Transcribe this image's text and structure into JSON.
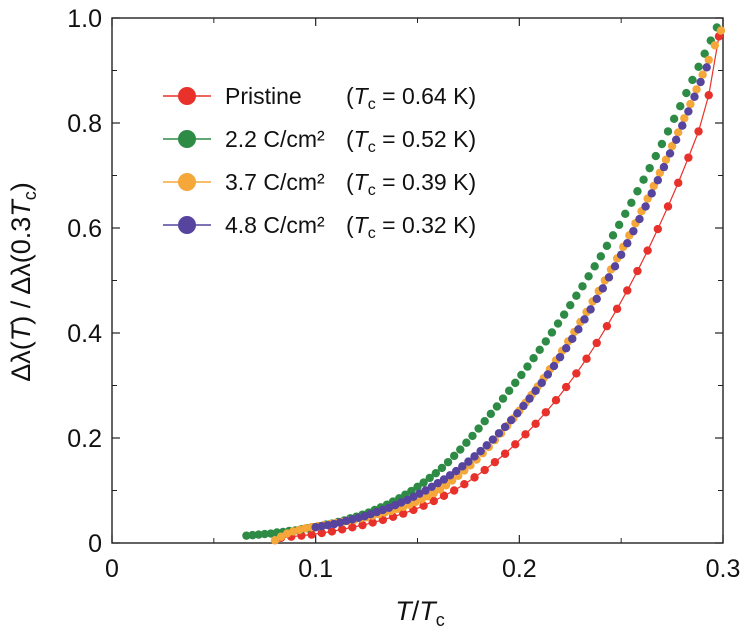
{
  "chart_data": {
    "type": "scatter",
    "title": "",
    "xlabel": {
      "main": "T",
      "slash": "/",
      "sym": "T",
      "sub": "c"
    },
    "ylabel": {
      "p1": "Δλ(",
      "T": "T",
      "p2": ") / Δλ(0.3",
      "T2": "T",
      "sub": "c",
      "p3": ")"
    },
    "xlim": [
      0,
      0.3
    ],
    "ylim": [
      0,
      1.0
    ],
    "x_ticks": [
      {
        "value": 0,
        "label": "0"
      },
      {
        "value": 0.1,
        "label": "0.1"
      },
      {
        "value": 0.2,
        "label": "0.2"
      },
      {
        "value": 0.3,
        "label": "0.3"
      }
    ],
    "y_ticks": [
      {
        "value": 0,
        "label": "0"
      },
      {
        "value": 0.2,
        "label": "0.2"
      },
      {
        "value": 0.4,
        "label": "0.4"
      },
      {
        "value": 0.6,
        "label": "0.6"
      },
      {
        "value": 0.8,
        "label": "0.8"
      },
      {
        "value": 1.0,
        "label": "1.0"
      }
    ],
    "legend_placement": "upper-left",
    "series": [
      {
        "name": "Pristine",
        "tc_value": "0.64 K",
        "color": "#e8312a",
        "connected": true,
        "x": [
          0.083,
          0.088,
          0.093,
          0.098,
          0.103,
          0.108,
          0.113,
          0.118,
          0.123,
          0.128,
          0.133,
          0.138,
          0.143,
          0.148,
          0.153,
          0.158,
          0.163,
          0.168,
          0.173,
          0.178,
          0.183,
          0.188,
          0.193,
          0.198,
          0.203,
          0.208,
          0.213,
          0.218,
          0.223,
          0.228,
          0.233,
          0.238,
          0.243,
          0.248,
          0.253,
          0.258,
          0.263,
          0.268,
          0.273,
          0.278,
          0.283,
          0.288,
          0.293,
          0.298
        ],
        "y": [
          0.01,
          0.012,
          0.014,
          0.016,
          0.019,
          0.022,
          0.026,
          0.03,
          0.034,
          0.039,
          0.044,
          0.05,
          0.056,
          0.063,
          0.071,
          0.08,
          0.09,
          0.1,
          0.112,
          0.125,
          0.139,
          0.154,
          0.17,
          0.188,
          0.207,
          0.227,
          0.249,
          0.272,
          0.297,
          0.323,
          0.351,
          0.381,
          0.413,
          0.446,
          0.481,
          0.518,
          0.557,
          0.598,
          0.641,
          0.686,
          0.734,
          0.784,
          0.853,
          0.965
        ]
      },
      {
        "name": "2.2 C/cm²",
        "tc_value": "0.52 K",
        "color": "#2e8b46",
        "connected": false,
        "x": [
          0.066,
          0.069,
          0.072,
          0.075,
          0.078,
          0.081,
          0.084,
          0.087,
          0.09,
          0.093,
          0.096,
          0.099,
          0.102,
          0.105,
          0.108,
          0.111,
          0.114,
          0.117,
          0.12,
          0.123,
          0.126,
          0.129,
          0.132,
          0.135,
          0.138,
          0.141,
          0.144,
          0.147,
          0.15,
          0.153,
          0.156,
          0.159,
          0.162,
          0.165,
          0.168,
          0.171,
          0.174,
          0.177,
          0.18,
          0.183,
          0.186,
          0.189,
          0.192,
          0.195,
          0.198,
          0.201,
          0.204,
          0.207,
          0.21,
          0.213,
          0.216,
          0.219,
          0.222,
          0.225,
          0.228,
          0.231,
          0.234,
          0.237,
          0.24,
          0.243,
          0.246,
          0.249,
          0.252,
          0.255,
          0.258,
          0.261,
          0.264,
          0.267,
          0.27,
          0.273,
          0.276,
          0.279,
          0.282,
          0.285,
          0.288,
          0.291,
          0.294,
          0.297
        ],
        "y": [
          0.014,
          0.015,
          0.016,
          0.017,
          0.018,
          0.02,
          0.021,
          0.023,
          0.024,
          0.026,
          0.028,
          0.03,
          0.032,
          0.035,
          0.037,
          0.04,
          0.043,
          0.047,
          0.05,
          0.054,
          0.058,
          0.063,
          0.068,
          0.073,
          0.079,
          0.085,
          0.092,
          0.099,
          0.107,
          0.115,
          0.124,
          0.133,
          0.143,
          0.154,
          0.166,
          0.178,
          0.191,
          0.204,
          0.218,
          0.232,
          0.246,
          0.26,
          0.275,
          0.29,
          0.305,
          0.32,
          0.336,
          0.352,
          0.368,
          0.384,
          0.401,
          0.418,
          0.435,
          0.453,
          0.471,
          0.489,
          0.508,
          0.527,
          0.546,
          0.566,
          0.586,
          0.606,
          0.627,
          0.648,
          0.67,
          0.692,
          0.714,
          0.737,
          0.76,
          0.784,
          0.808,
          0.832,
          0.857,
          0.882,
          0.907,
          0.932,
          0.957,
          0.982
        ]
      },
      {
        "name": "3.7 C/cm²",
        "tc_value": "0.39 K",
        "color": "#f5a73a",
        "connected": false,
        "x": [
          0.08,
          0.083,
          0.086,
          0.089,
          0.092,
          0.095,
          0.098,
          0.101,
          0.104,
          0.107,
          0.11,
          0.113,
          0.116,
          0.119,
          0.122,
          0.125,
          0.128,
          0.131,
          0.134,
          0.137,
          0.14,
          0.143,
          0.146,
          0.149,
          0.152,
          0.155,
          0.158,
          0.161,
          0.164,
          0.167,
          0.17,
          0.173,
          0.176,
          0.179,
          0.182,
          0.185,
          0.188,
          0.191,
          0.194,
          0.197,
          0.2,
          0.203,
          0.206,
          0.209,
          0.212,
          0.215,
          0.218,
          0.221,
          0.224,
          0.227,
          0.23,
          0.233,
          0.236,
          0.239,
          0.242,
          0.245,
          0.248,
          0.251,
          0.254,
          0.257,
          0.26,
          0.263,
          0.266,
          0.269,
          0.272,
          0.275,
          0.278,
          0.281,
          0.284,
          0.287,
          0.29,
          0.293,
          0.296,
          0.299
        ],
        "y": [
          0.005,
          0.012,
          0.018,
          0.022,
          0.025,
          0.028,
          0.03,
          0.032,
          0.034,
          0.036,
          0.038,
          0.04,
          0.042,
          0.044,
          0.047,
          0.049,
          0.052,
          0.055,
          0.058,
          0.061,
          0.065,
          0.069,
          0.073,
          0.078,
          0.083,
          0.089,
          0.095,
          0.102,
          0.11,
          0.119,
          0.128,
          0.138,
          0.148,
          0.159,
          0.171,
          0.183,
          0.196,
          0.209,
          0.223,
          0.237,
          0.252,
          0.267,
          0.282,
          0.298,
          0.314,
          0.331,
          0.348,
          0.366,
          0.384,
          0.402,
          0.421,
          0.44,
          0.46,
          0.48,
          0.5,
          0.521,
          0.542,
          0.564,
          0.586,
          0.609,
          0.632,
          0.656,
          0.68,
          0.705,
          0.73,
          0.756,
          0.782,
          0.809,
          0.836,
          0.864,
          0.892,
          0.92,
          0.948,
          0.976
        ]
      },
      {
        "name": "4.8 C/cm²",
        "tc_value": "0.32 K",
        "color": "#56449e",
        "connected": false,
        "x": [
          0.1,
          0.103,
          0.106,
          0.109,
          0.112,
          0.115,
          0.118,
          0.121,
          0.124,
          0.127,
          0.13,
          0.133,
          0.136,
          0.139,
          0.142,
          0.145,
          0.148,
          0.151,
          0.154,
          0.157,
          0.16,
          0.163,
          0.166,
          0.169,
          0.172,
          0.175,
          0.178,
          0.181,
          0.184,
          0.187,
          0.19,
          0.193,
          0.196,
          0.199,
          0.202,
          0.205,
          0.208,
          0.211,
          0.214,
          0.217,
          0.22,
          0.223,
          0.226,
          0.229,
          0.232,
          0.235,
          0.238,
          0.241,
          0.244,
          0.247,
          0.25,
          0.253,
          0.256,
          0.259,
          0.262,
          0.265,
          0.268,
          0.271,
          0.274,
          0.277,
          0.28,
          0.283,
          0.286,
          0.289,
          0.292
        ],
        "y": [
          0.03,
          0.032,
          0.034,
          0.036,
          0.039,
          0.042,
          0.045,
          0.048,
          0.051,
          0.055,
          0.059,
          0.063,
          0.067,
          0.072,
          0.077,
          0.082,
          0.088,
          0.094,
          0.1,
          0.107,
          0.114,
          0.121,
          0.129,
          0.137,
          0.146,
          0.155,
          0.165,
          0.175,
          0.186,
          0.197,
          0.209,
          0.221,
          0.234,
          0.247,
          0.261,
          0.275,
          0.29,
          0.305,
          0.321,
          0.337,
          0.354,
          0.371,
          0.389,
          0.407,
          0.426,
          0.445,
          0.465,
          0.485,
          0.506,
          0.527,
          0.549,
          0.571,
          0.594,
          0.617,
          0.641,
          0.666,
          0.691,
          0.716,
          0.742,
          0.768,
          0.795,
          0.822,
          0.85,
          0.878,
          0.906
        ]
      }
    ]
  }
}
